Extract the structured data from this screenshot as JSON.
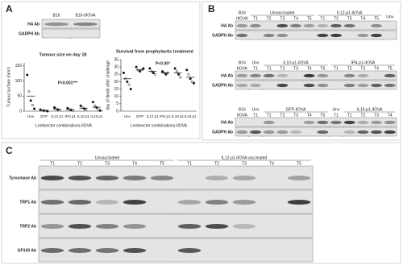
{
  "panel_a": {
    "label": "A",
    "blot": {
      "groups": [
        {
          "name": "B16"
        },
        {
          "name": "B16-tIIOVA"
        }
      ],
      "rows": [
        "HA Ab",
        "GADPH Ab"
      ]
    }
  },
  "chart_data": [
    {
      "type": "scatter",
      "title": "Tumour size on day 18",
      "y_label": "Tumour surface (mm²)",
      "x_label": "Lentivector combinations-IIOVA",
      "annotation": "P<0.001***",
      "categories": [
        "Unv",
        "GFP",
        "IL12 p1",
        "IFN p1",
        "IL10 p1",
        "IL15 p1"
      ],
      "values": [
        [
          120,
          65,
          35,
          20,
          8
        ],
        [
          5,
          3,
          2,
          1,
          0
        ],
        [
          12,
          8,
          5,
          3
        ],
        [
          10,
          6,
          4,
          2
        ],
        [
          18,
          12,
          8,
          5
        ],
        [
          30,
          18,
          12,
          5,
          2
        ]
      ],
      "means": [
        50,
        2,
        7,
        5,
        10,
        13
      ],
      "ylim": [
        0,
        160
      ],
      "yticks": [
        0,
        50,
        100,
        150
      ]
    },
    {
      "type": "scatter",
      "title": "Survival from prophylactic treatment",
      "y_label": "day of death after challenge",
      "x_label": "Lentivector combinations-IIOVA",
      "annotation": "P<0.05*",
      "categories": [
        "Unv",
        "GFP",
        "IL12 p1",
        "IFN p1",
        "IL10 p1",
        "IL15 p1"
      ],
      "values": [
        [
          26,
          22,
          20,
          18,
          15
        ],
        [
          30,
          28,
          27,
          28,
          29
        ],
        [
          29,
          27,
          26,
          25
        ],
        [
          27,
          26,
          25,
          26
        ],
        [
          29,
          27,
          25,
          23
        ],
        [
          28,
          25,
          22,
          20,
          19
        ]
      ],
      "means": [
        22,
        28,
        27,
        26,
        26,
        23
      ],
      "ylim": [
        0,
        35
      ],
      "yticks": [
        0,
        5,
        10,
        15,
        20,
        25,
        30,
        35
      ]
    }
  ],
  "panel_b": {
    "label": "B",
    "blots": [
      {
        "groups": [
          {
            "name": "B16",
            "lanes": [
              "tIIOVA"
            ]
          },
          {
            "name": "Unvaccinated",
            "lanes": [
              "T1",
              "T2",
              "T3",
              "T4",
              "T5"
            ]
          },
          {
            "name": "IL12-p1-IIOVA",
            "lanes": [
              "T1",
              "T2",
              "T3",
              "T4",
              "T5"
            ]
          },
          {
            "name": "Unv"
          }
        ],
        "rows": [
          "HA Ab",
          "GADPH Ab"
        ]
      },
      {
        "groups": [
          {
            "name": "B16",
            "lanes": [
              "IIOVA"
            ]
          },
          {
            "name": "Unv",
            "lanes": [
              "T1"
            ]
          },
          {
            "name": "IL10-p1-IIOVA",
            "lanes": [
              "T1",
              "T2",
              "T3",
              "T4",
              "T5"
            ]
          },
          {
            "name": "IFN-p1-IIOVA",
            "lanes": [
              "T1",
              "T2",
              "T3",
              "T4",
              "T5"
            ]
          }
        ],
        "rows": [
          "HA Ab",
          "GADPH Ab"
        ]
      },
      {
        "groups": [
          {
            "name": "B16",
            "lanes": [
              "IIOVA"
            ]
          },
          {
            "name": "Unv",
            "lanes": [
              "T1"
            ]
          },
          {
            "name": "GFP-IIOVA",
            "lanes": [
              "T1",
              "T2",
              "T3",
              "T4",
              "T5"
            ]
          },
          {
            "name": "Unv",
            "lanes": [
              "T1"
            ]
          },
          {
            "name": "IL15-p1-IIOVA",
            "lanes": [
              "T1",
              "T2",
              "T3",
              "T4"
            ]
          }
        ],
        "rows": [
          "HA Ab",
          "GADPH Ab"
        ]
      }
    ]
  },
  "panel_c": {
    "label": "C",
    "blot": {
      "groups": [
        {
          "name": "Unvaccinated",
          "lanes": [
            "T1",
            "T2",
            "T3",
            "T4",
            "T5"
          ]
        },
        {
          "name": "IL12-p1-IIOVA vaccinated",
          "lanes": [
            "T1",
            "T2",
            "T3",
            "T4",
            "T5"
          ]
        }
      ],
      "rows": [
        "Tyrosinase Ab",
        "TRP1 Ab",
        "TRP2 Ab",
        "GP100 Ab"
      ]
    }
  }
}
